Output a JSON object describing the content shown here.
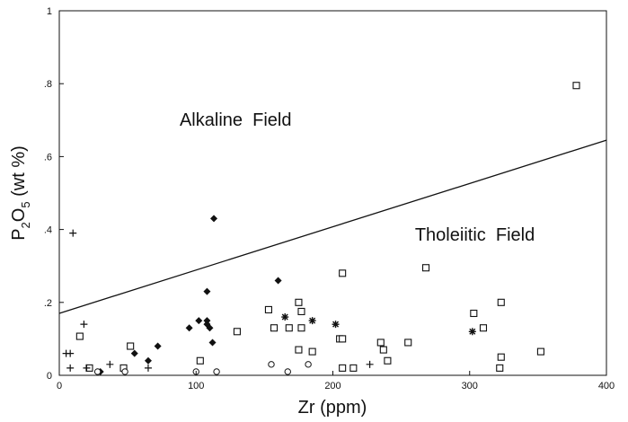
{
  "chart_data": {
    "type": "scatter",
    "xlabel": "Zr (ppm)",
    "ylabel_main": "P",
    "ylabel_sub1": "2",
    "ylabel_mid": "O",
    "ylabel_sub2": "5",
    "ylabel_rest": " (wt %)",
    "xlim": [
      0,
      400
    ],
    "ylim": [
      0,
      1
    ],
    "x_ticks": [
      {
        "value": 0,
        "label": "0"
      },
      {
        "value": 100,
        "label": "100"
      },
      {
        "value": 200,
        "label": "200"
      },
      {
        "value": 300,
        "label": "300"
      },
      {
        "value": 400,
        "label": "400"
      }
    ],
    "y_ticks": [
      {
        "value": 0,
        "label": "0"
      },
      {
        "value": 0.2,
        "label": ".2"
      },
      {
        "value": 0.4,
        "label": ".4"
      },
      {
        "value": 0.6,
        "label": ".6"
      },
      {
        "value": 0.8,
        "label": ".8"
      },
      {
        "value": 1,
        "label": "1"
      }
    ],
    "grid": false,
    "annotations": [
      {
        "text": "Alkaline  Field",
        "x": 88,
        "y": 0.685
      },
      {
        "text": "Tholeiitic  Field",
        "x": 260,
        "y": 0.37
      }
    ],
    "boundary_line": {
      "x": [
        0,
        400
      ],
      "y": [
        0.17,
        0.645
      ]
    },
    "series": [
      {
        "marker": "square",
        "points": [
          [
            15,
            0.107
          ],
          [
            22,
            0.02
          ],
          [
            47,
            0.02
          ],
          [
            52,
            0.08
          ],
          [
            103,
            0.04
          ],
          [
            130,
            0.12
          ],
          [
            153,
            0.18
          ],
          [
            157,
            0.13
          ],
          [
            168,
            0.13
          ],
          [
            175,
            0.2
          ],
          [
            177,
            0.175
          ],
          [
            177,
            0.13
          ],
          [
            175,
            0.07
          ],
          [
            185,
            0.065
          ],
          [
            205,
            0.1
          ],
          [
            207,
            0.1
          ],
          [
            207,
            0.28
          ],
          [
            207,
            0.02
          ],
          [
            215,
            0.02
          ],
          [
            235,
            0.09
          ],
          [
            237,
            0.07
          ],
          [
            240,
            0.04
          ],
          [
            255,
            0.09
          ],
          [
            268,
            0.295
          ],
          [
            303,
            0.17
          ],
          [
            310,
            0.13
          ],
          [
            323,
            0.2
          ],
          [
            323,
            0.05
          ],
          [
            322,
            0.02
          ],
          [
            352,
            0.065
          ],
          [
            378,
            0.795
          ]
        ]
      },
      {
        "marker": "diamond",
        "points": [
          [
            30,
            0.01
          ],
          [
            55,
            0.06
          ],
          [
            65,
            0.04
          ],
          [
            72,
            0.08
          ],
          [
            95,
            0.13
          ],
          [
            102,
            0.15
          ],
          [
            108,
            0.23
          ],
          [
            108,
            0.15
          ],
          [
            108,
            0.14
          ],
          [
            110,
            0.13
          ],
          [
            112,
            0.09
          ],
          [
            113,
            0.43
          ],
          [
            160,
            0.26
          ]
        ]
      },
      {
        "marker": "plus",
        "points": [
          [
            5,
            0.06
          ],
          [
            8,
            0.06
          ],
          [
            10,
            0.39
          ],
          [
            8,
            0.02
          ],
          [
            18,
            0.14
          ],
          [
            20,
            0.02
          ],
          [
            37,
            0.03
          ],
          [
            65,
            0.02
          ],
          [
            227,
            0.03
          ]
        ]
      },
      {
        "marker": "star",
        "points": [
          [
            165,
            0.16
          ],
          [
            185,
            0.15
          ],
          [
            202,
            0.14
          ],
          [
            302,
            0.12
          ]
        ]
      },
      {
        "marker": "circle",
        "points": [
          [
            28,
            0.01
          ],
          [
            48,
            0.01
          ],
          [
            100,
            0.01
          ],
          [
            115,
            0.01
          ],
          [
            155,
            0.03
          ],
          [
            167,
            0.01
          ],
          [
            182,
            0.03
          ]
        ]
      }
    ]
  }
}
